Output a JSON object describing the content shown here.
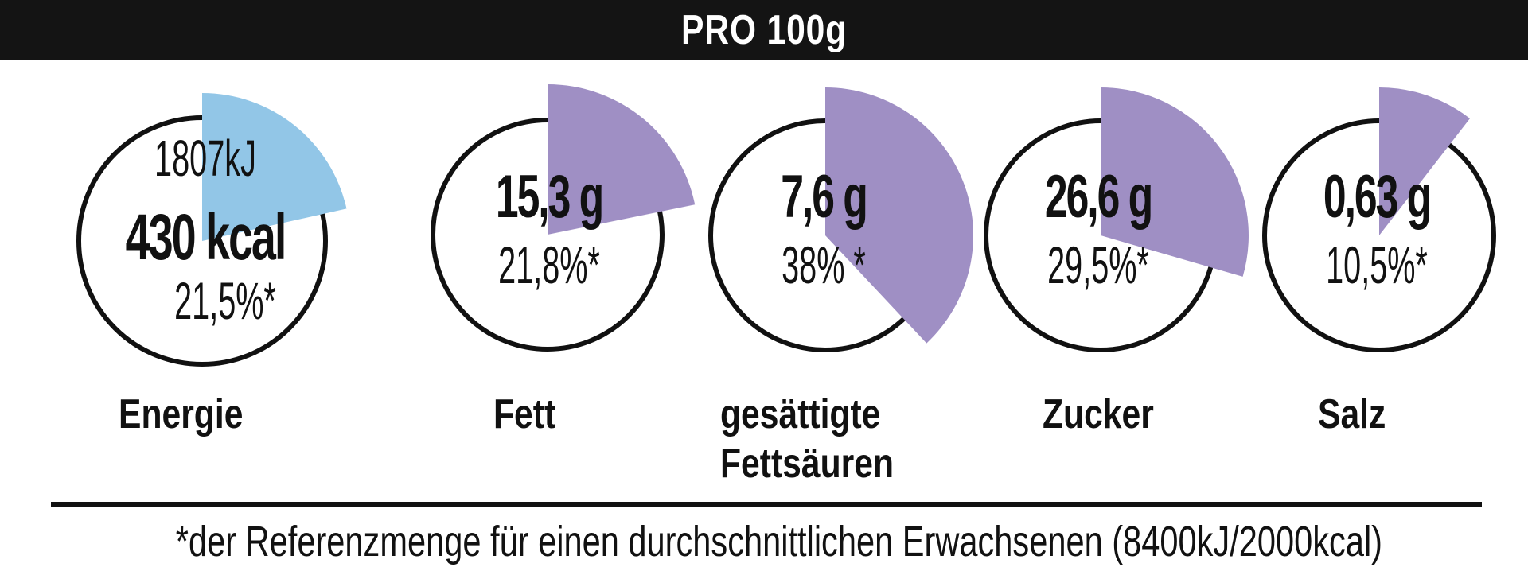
{
  "header": {
    "title": "PRO 100g"
  },
  "colors": {
    "energy_wedge": "#92c6e7",
    "nutrient_wedge": "#9f8fc4",
    "ring": "#111111",
    "header_bg": "#141414"
  },
  "items": [
    {
      "kj": "1807kJ",
      "amount": "430 kcal",
      "percent": "21,5%*",
      "label_lines": [
        "Energie"
      ],
      "fraction": 0.215
    },
    {
      "amount": "15,3 g",
      "percent": "21,8%*",
      "label_lines": [
        "Fett"
      ],
      "fraction": 0.218
    },
    {
      "amount": "7,6 g",
      "percent": "38% *",
      "label_lines": [
        "gesättigte",
        "Fettsäuren"
      ],
      "fraction": 0.38
    },
    {
      "amount": "26,6 g",
      "percent": "29,5%*",
      "label_lines": [
        "Zucker"
      ],
      "fraction": 0.295
    },
    {
      "amount": "0,63 g",
      "percent": "10,5%*",
      "label_lines": [
        "Salz"
      ],
      "fraction": 0.105
    }
  ],
  "footnote": "*der Referenzmenge für einen durchschnittlichen Erwachsenen (8400kJ/2000kcal)"
}
